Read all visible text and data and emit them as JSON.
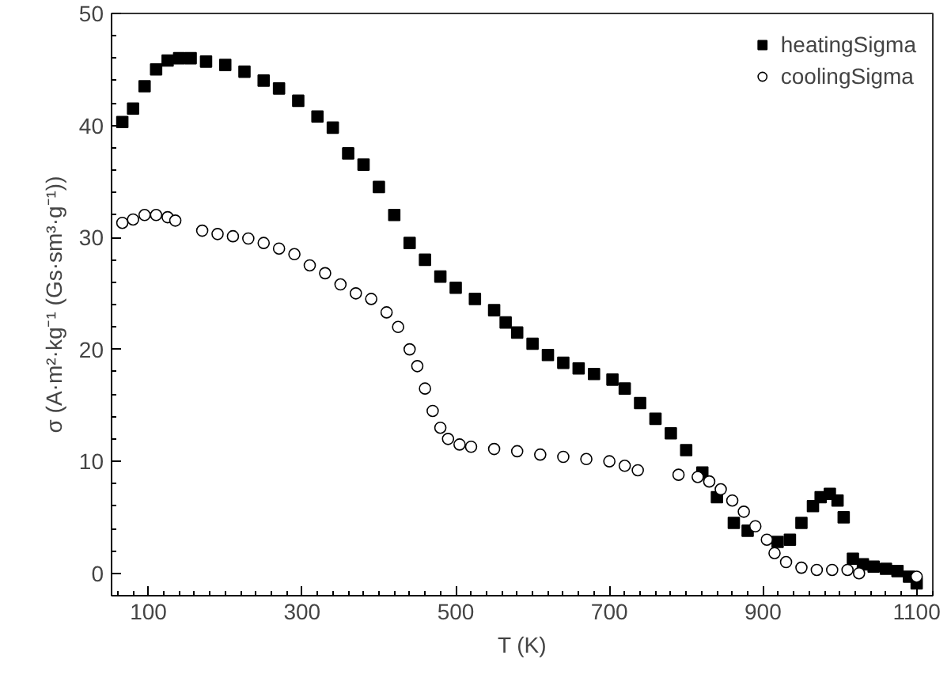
{
  "chart_data": {
    "type": "scatter",
    "xlabel": "T (K)",
    "ylabel": "σ (A·m²·kg⁻¹ (Gs·sm³·g⁻¹))",
    "xlim": [
      52,
      1121
    ],
    "ylim": [
      -2,
      50
    ],
    "xticks": [
      100,
      300,
      500,
      700,
      900,
      1100
    ],
    "yticks": [
      0,
      10,
      20,
      30,
      40,
      50
    ],
    "grid": false,
    "legend": "top right",
    "series": [
      {
        "name": "heatingSigma",
        "color": "#000000",
        "marker": "square",
        "x": [
          66,
          80,
          95,
          110,
          125,
          140,
          155,
          175,
          200,
          225,
          250,
          270,
          295,
          320,
          340,
          360,
          380,
          400,
          420,
          440,
          460,
          480,
          500,
          525,
          550,
          565,
          580,
          600,
          620,
          640,
          660,
          680,
          704,
          720,
          740,
          760,
          780,
          800,
          821,
          840,
          862,
          880,
          919,
          935,
          950,
          965,
          975,
          987,
          997,
          1005,
          1017,
          1030,
          1044,
          1060,
          1075,
          1090,
          1100
        ],
        "values": [
          40.3,
          41.5,
          43.5,
          45,
          45.8,
          46,
          46,
          45.7,
          45.4,
          44.8,
          44,
          43.3,
          42.2,
          40.8,
          39.8,
          37.5,
          36.5,
          34.5,
          32,
          29.5,
          28,
          26.5,
          25.5,
          24.5,
          23.5,
          22.4,
          21.5,
          20.5,
          19.5,
          18.8,
          18.3,
          17.8,
          17.3,
          16.5,
          15.2,
          13.8,
          12.5,
          11,
          9,
          6.8,
          4.5,
          3.8,
          2.8,
          3,
          4.5,
          6,
          6.8,
          7.1,
          6.5,
          5,
          1.3,
          0.8,
          0.6,
          0.4,
          0.2,
          -0.3,
          -0.9
        ]
      },
      {
        "name": "coolingSigma",
        "color": "#000000",
        "marker": "circle",
        "x": [
          66,
          80,
          95,
          110,
          125,
          135,
          170,
          190,
          210,
          230,
          250,
          270,
          290,
          310,
          330,
          350,
          370,
          390,
          410,
          425,
          440,
          450,
          460,
          470,
          480,
          490,
          505,
          520,
          550,
          580,
          610,
          640,
          670,
          700,
          720,
          737,
          790,
          815,
          830,
          845,
          860,
          875,
          890,
          905,
          915,
          930,
          950,
          970,
          990,
          1010,
          1025,
          1100
        ],
        "values": [
          31.3,
          31.6,
          32,
          32,
          31.8,
          31.5,
          30.6,
          30.3,
          30.1,
          29.9,
          29.5,
          29,
          28.5,
          27.5,
          26.8,
          25.8,
          25,
          24.5,
          23.3,
          22,
          20,
          18.5,
          16.5,
          14.5,
          13,
          12,
          11.5,
          11.3,
          11.1,
          10.9,
          10.6,
          10.4,
          10.2,
          10,
          9.6,
          9.2,
          8.8,
          8.6,
          8.2,
          7.5,
          6.5,
          5.5,
          4.2,
          3,
          1.8,
          1,
          0.5,
          0.3,
          0.3,
          0.3,
          0,
          -0.3
        ]
      }
    ]
  }
}
